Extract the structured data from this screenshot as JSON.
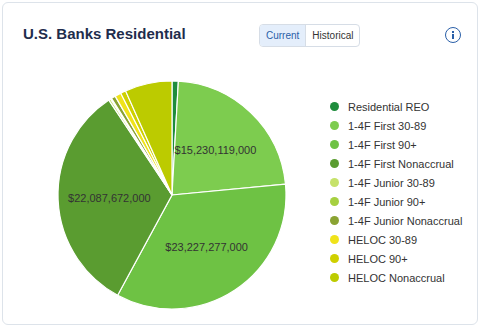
{
  "chart_data": {
    "type": "pie",
    "title": "U.S. Banks Residential",
    "buttons": [
      "Current",
      "Historical"
    ],
    "categories": [
      "Residential REO",
      "1-4F First 30-89",
      "1-4F First 90+",
      "1-4F First Nonaccrual",
      "1-4F Junior 30-89",
      "1-4F Junior 90+",
      "1-4F Junior Nonaccrual",
      "HELOC 30-89",
      "HELOC 90+",
      "HELOC Nonaccrual"
    ],
    "values": [
      600000000,
      15230119000,
      23227277000,
      22087672000,
      200000000,
      100000000,
      400000000,
      600000000,
      500000000,
      4500000000
    ],
    "value_labels": [
      null,
      "$15,230,119,000",
      "$23,227,277,000",
      "$22,087,672,000",
      null,
      null,
      null,
      null,
      null,
      null
    ],
    "colors": [
      "#1e8c3c",
      "#7dcc4f",
      "#6ec244",
      "#5a9c30",
      "#c6e26a",
      "#a6d040",
      "#8aa332",
      "#f0e31a",
      "#cfd000",
      "#bccb00"
    ],
    "data_labels": true,
    "legend": "right"
  }
}
